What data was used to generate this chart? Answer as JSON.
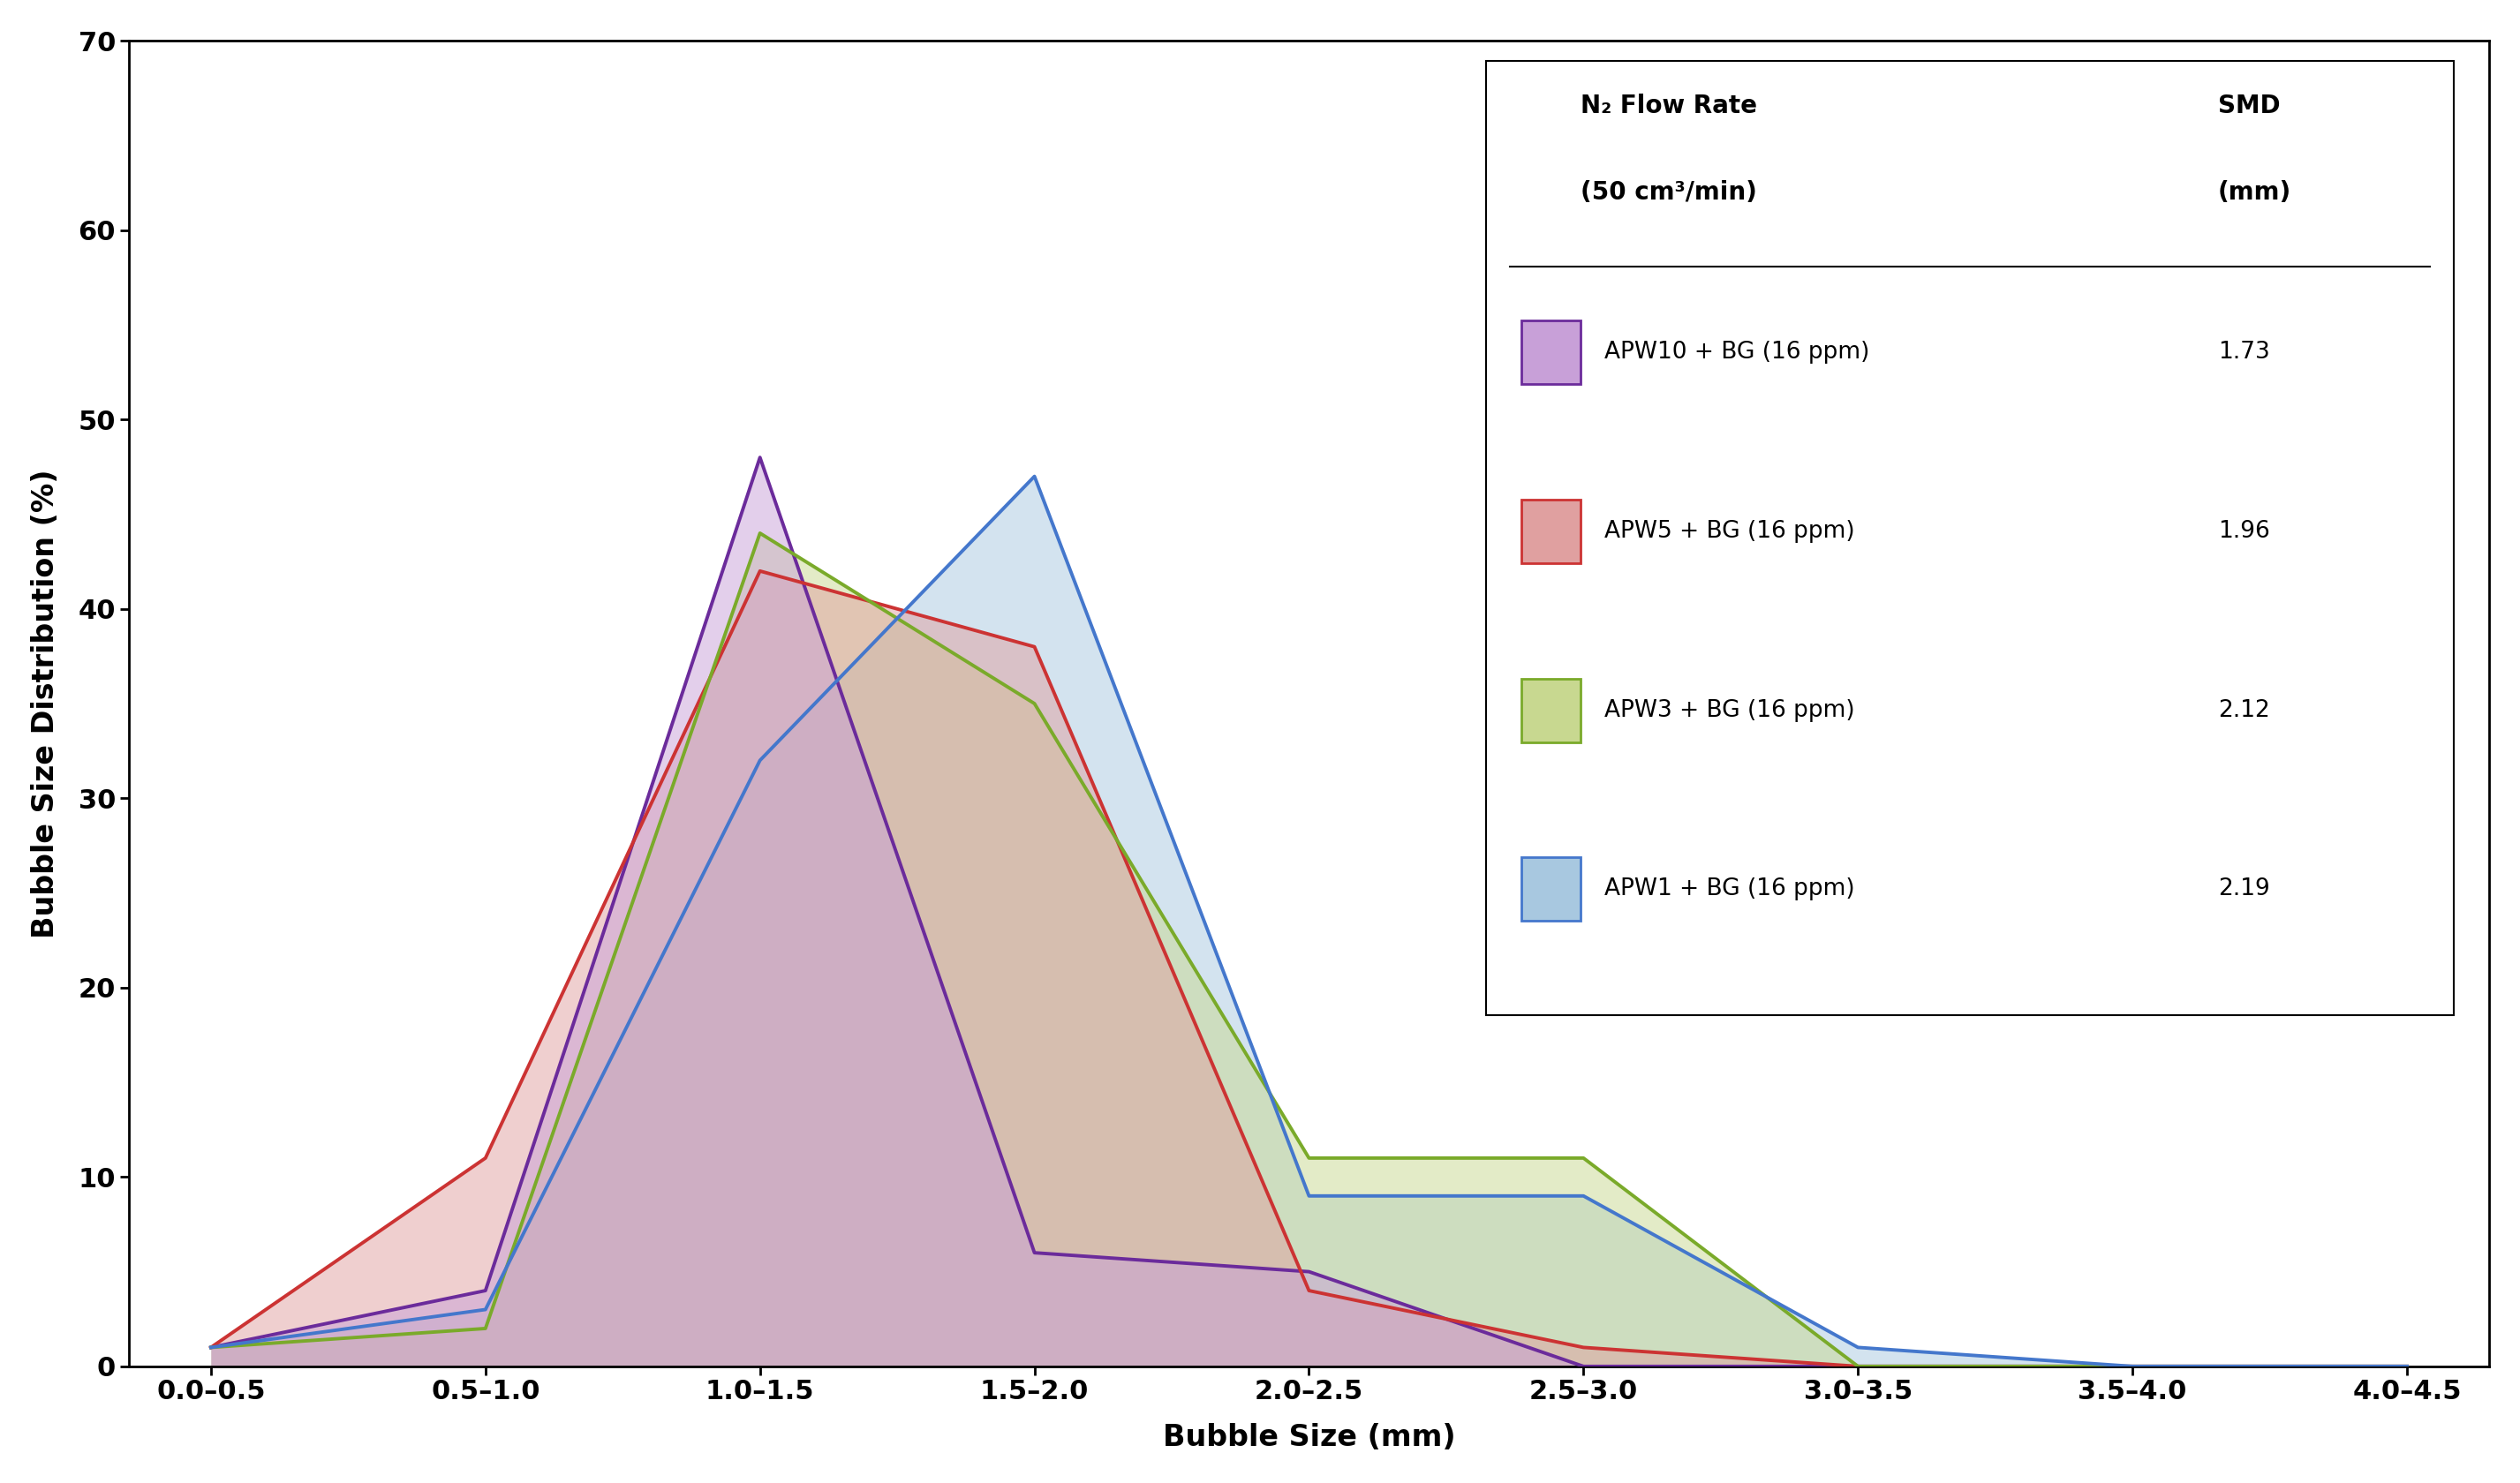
{
  "categories": [
    "0.0–0.5",
    "0.5–1.0",
    "1.0–1.5",
    "1.5–2.0",
    "2.0–2.5",
    "2.5–3.0",
    "3.0–3.5",
    "3.5–4.0",
    "4.0–4.5"
  ],
  "series": [
    {
      "label": "APW10 + BG (16 ppm)",
      "smd": "1.73",
      "line_color": "#6B2B9B",
      "fill_color": "#C8A0D8",
      "fill_alpha": 0.5,
      "values": [
        1,
        4,
        48,
        6,
        5,
        0,
        0,
        0,
        0
      ]
    },
    {
      "label": "APW5 + BG (16 ppm)",
      "smd": "1.96",
      "line_color": "#CC3333",
      "fill_color": "#E0A0A0",
      "fill_alpha": 0.5,
      "values": [
        1,
        11,
        42,
        38,
        4,
        1,
        0,
        0,
        0
      ]
    },
    {
      "label": "APW3 + BG (16 ppm)",
      "smd": "2.12",
      "line_color": "#7AAA2A",
      "fill_color": "#C8D890",
      "fill_alpha": 0.5,
      "values": [
        1,
        2,
        44,
        35,
        11,
        11,
        0,
        0,
        0
      ]
    },
    {
      "label": "APW1 + BG (16 ppm)",
      "smd": "2.19",
      "line_color": "#4477CC",
      "fill_color": "#A8C8E0",
      "fill_alpha": 0.5,
      "values": [
        1,
        3,
        32,
        47,
        9,
        9,
        1,
        0,
        0
      ]
    }
  ],
  "ylabel": "Bubble Size Distribution (%)",
  "xlabel": "Bubble Size (mm)",
  "ylim": [
    0,
    70
  ],
  "yticks": [
    0,
    10,
    20,
    30,
    40,
    50,
    60,
    70
  ],
  "legend_header1": "N₂ Flow Rate",
  "legend_header1b": "(50 cm³/min)",
  "legend_header2": "SMD",
  "legend_header2b": "(mm)"
}
